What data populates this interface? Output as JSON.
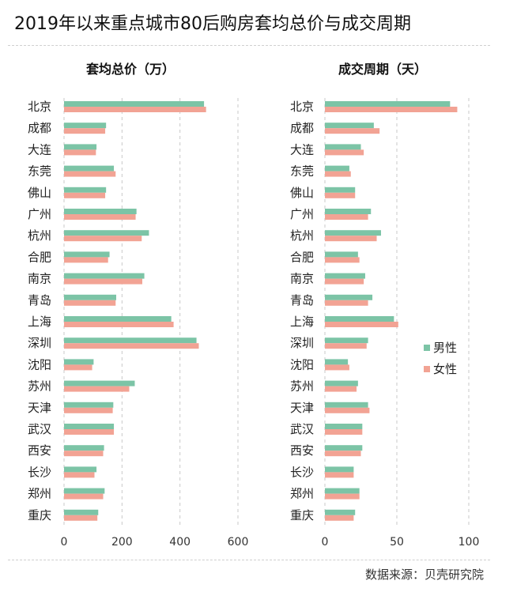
{
  "title": "2019年以来重点城市80后购房套均总价与成交周期",
  "source": "数据来源：贝壳研究院",
  "colors": {
    "male": "#7cc4a6",
    "female": "#f2a394",
    "grid": "#c8c8c8"
  },
  "chart_data": [
    {
      "type": "bar",
      "orientation": "horizontal",
      "title": "套均总价（万）",
      "categories": [
        "北京",
        "成都",
        "大连",
        "东莞",
        "佛山",
        "广州",
        "杭州",
        "合肥",
        "南京",
        "青岛",
        "上海",
        "深圳",
        "沈阳",
        "苏州",
        "天津",
        "武汉",
        "西安",
        "长沙",
        "郑州",
        "重庆"
      ],
      "series": [
        {
          "name": "男性",
          "values": [
            483,
            145,
            112,
            172,
            145,
            250,
            293,
            157,
            277,
            180,
            370,
            457,
            102,
            244,
            170,
            172,
            138,
            112,
            140,
            118
          ]
        },
        {
          "name": "女性",
          "values": [
            490,
            142,
            110,
            178,
            142,
            247,
            268,
            152,
            270,
            178,
            378,
            465,
            97,
            225,
            168,
            172,
            135,
            105,
            135,
            115
          ]
        }
      ],
      "xlim": [
        0,
        600
      ],
      "xticks": [
        "0",
        "200",
        "400",
        "600"
      ],
      "grid": true
    },
    {
      "type": "bar",
      "orientation": "horizontal",
      "title": "成交周期（天）",
      "categories": [
        "北京",
        "成都",
        "大连",
        "东莞",
        "佛山",
        "广州",
        "杭州",
        "合肥",
        "南京",
        "青岛",
        "上海",
        "深圳",
        "沈阳",
        "苏州",
        "天津",
        "武汉",
        "西安",
        "长沙",
        "郑州",
        "重庆"
      ],
      "series": [
        {
          "name": "男性",
          "values": [
            87,
            34,
            25,
            17,
            21,
            32,
            39,
            23,
            28,
            33,
            48,
            30,
            16,
            23,
            30,
            26,
            26,
            20,
            24,
            21
          ]
        },
        {
          "name": "女性",
          "values": [
            92,
            38,
            27,
            18,
            21,
            30,
            36,
            24,
            27,
            30,
            51,
            29,
            17,
            22,
            31,
            26,
            25,
            20,
            24,
            20
          ]
        }
      ],
      "xlim": [
        0,
        100
      ],
      "xticks": [
        "0",
        "50",
        "100"
      ],
      "grid": true,
      "legend": "right-middle"
    }
  ]
}
